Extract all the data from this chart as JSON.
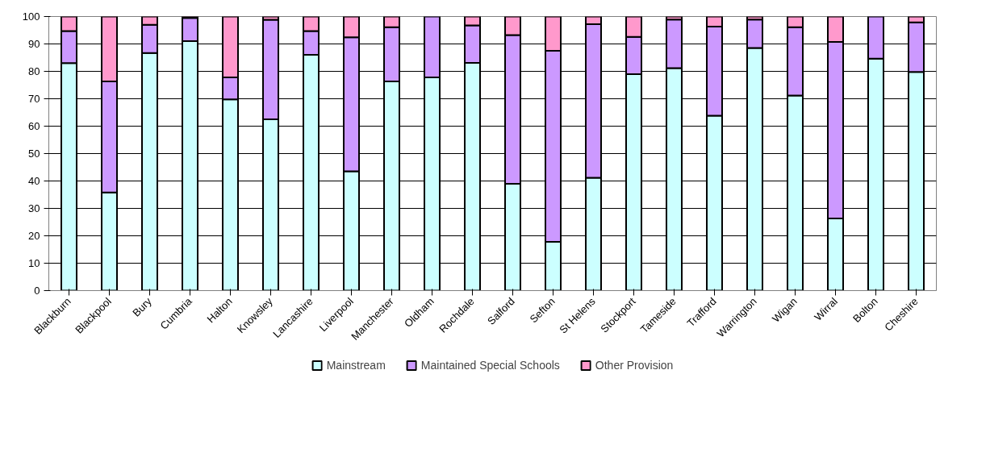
{
  "chart_data": {
    "type": "bar",
    "stacked": true,
    "categories": [
      "Blackburn",
      "Blackpool",
      "Bury",
      "Cumbria",
      "Halton",
      "Knowsley",
      "Lancashire",
      "Liverpool",
      "Manchester",
      "Oldham",
      "Rochdale",
      "Salford",
      "Sefton",
      "St Helens",
      "Stockport",
      "Tameside",
      "Trafford",
      "Warrington",
      "Wigan",
      "Wirral",
      "Bolton",
      "Cheshire"
    ],
    "series": [
      {
        "name": "Mainstream",
        "color": "#ccffff",
        "values": [
          83,
          35.8,
          86.7,
          91,
          69.8,
          62.5,
          86,
          43.5,
          76.3,
          77.8,
          83.1,
          39,
          17.8,
          41.2,
          79,
          81.2,
          63.8,
          88.5,
          71.2,
          26.3,
          84.6,
          79.8
        ]
      },
      {
        "name": "Maintained Special Schools",
        "color": "#cc99ff",
        "values": [
          11.7,
          40.5,
          10.3,
          8.5,
          8,
          36.3,
          8.7,
          48.9,
          19.8,
          22.2,
          13.7,
          54.2,
          69.7,
          56,
          13.6,
          17.7,
          32.5,
          10.4,
          24.9,
          64.4,
          15.4,
          18.1
        ]
      },
      {
        "name": "Other Provision",
        "color": "#ff99cc",
        "values": [
          5.3,
          23.7,
          3,
          0.5,
          22.2,
          1.2,
          5.3,
          7.6,
          3.9,
          0,
          3.2,
          6.8,
          12.5,
          2.8,
          7.4,
          1.1,
          3.7,
          1.1,
          3.9,
          9.3,
          0,
          2.1
        ]
      }
    ],
    "ylim": [
      0,
      100
    ],
    "yticks": [
      0,
      10,
      20,
      30,
      40,
      50,
      60,
      70,
      80,
      90,
      100
    ],
    "grid": "y",
    "legend": "bottom"
  }
}
